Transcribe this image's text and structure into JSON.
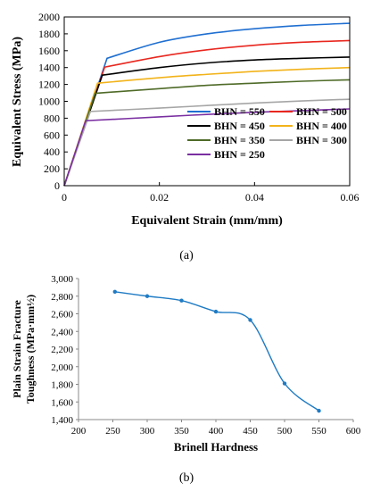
{
  "chart_data": [
    {
      "type": "line",
      "panel_label": "(a)",
      "xlabel": "Equivalent Strain (mm/mm)",
      "ylabel": "Equivalent Stress (MPa)",
      "xlim": [
        0,
        0.06
      ],
      "ylim": [
        0,
        2000
      ],
      "x_ticks": [
        0,
        0.02,
        0.04,
        0.06
      ],
      "x_tick_labels": [
        "0",
        "0.02",
        "0.04",
        "0.06"
      ],
      "y_ticks": [
        0,
        200,
        400,
        600,
        800,
        1000,
        1200,
        1400,
        1600,
        1800,
        2000
      ],
      "y_tick_labels": [
        "0",
        "200",
        "400",
        "600",
        "800",
        "1000",
        "1200",
        "1400",
        "1600",
        "1800",
        "2000"
      ],
      "grid": false,
      "legend_position": "bottom-right",
      "series": [
        {
          "name": "BHN = 550",
          "color": "#1f6fd1",
          "yield_strain": 0.009,
          "points": [
            [
              0,
              0
            ],
            [
              0.009,
              1510
            ],
            [
              0.02,
              1700
            ],
            [
              0.03,
              1800
            ],
            [
              0.04,
              1860
            ],
            [
              0.05,
              1900
            ],
            [
              0.06,
              1925
            ]
          ]
        },
        {
          "name": "BHN = 500",
          "color": "#e8271f",
          "yield_strain": 0.0085,
          "points": [
            [
              0,
              0
            ],
            [
              0.0085,
              1405
            ],
            [
              0.02,
              1530
            ],
            [
              0.03,
              1610
            ],
            [
              0.04,
              1665
            ],
            [
              0.05,
              1700
            ],
            [
              0.06,
              1720
            ]
          ]
        },
        {
          "name": "BHN = 450",
          "color": "#000000",
          "yield_strain": 0.008,
          "points": [
            [
              0,
              0
            ],
            [
              0.008,
              1310
            ],
            [
              0.02,
              1400
            ],
            [
              0.03,
              1455
            ],
            [
              0.04,
              1490
            ],
            [
              0.05,
              1510
            ],
            [
              0.06,
              1525
            ]
          ]
        },
        {
          "name": "BHN = 400",
          "color": "#f2b31a",
          "yield_strain": 0.007,
          "points": [
            [
              0,
              0
            ],
            [
              0.007,
              1215
            ],
            [
              0.02,
              1280
            ],
            [
              0.03,
              1320
            ],
            [
              0.04,
              1355
            ],
            [
              0.05,
              1380
            ],
            [
              0.06,
              1400
            ]
          ]
        },
        {
          "name": "BHN = 350",
          "color": "#4f6b28",
          "yield_strain": 0.0065,
          "points": [
            [
              0,
              0
            ],
            [
              0.0065,
              1095
            ],
            [
              0.02,
              1150
            ],
            [
              0.03,
              1190
            ],
            [
              0.04,
              1215
            ],
            [
              0.05,
              1238
            ],
            [
              0.06,
              1255
            ]
          ]
        },
        {
          "name": "BHN = 300",
          "color": "#a6a6a6",
          "yield_strain": 0.0055,
          "points": [
            [
              0,
              0
            ],
            [
              0.0055,
              880
            ],
            [
              0.02,
              920
            ],
            [
              0.03,
              950
            ],
            [
              0.04,
              980
            ],
            [
              0.05,
              1005
            ],
            [
              0.06,
              1025
            ]
          ]
        },
        {
          "name": "BHN = 250",
          "color": "#7a2fa1",
          "yield_strain": 0.0045,
          "points": [
            [
              0,
              0
            ],
            [
              0.0045,
              770
            ],
            [
              0.02,
              815
            ],
            [
              0.03,
              845
            ],
            [
              0.04,
              870
            ],
            [
              0.05,
              890
            ],
            [
              0.06,
              910
            ]
          ]
        }
      ]
    },
    {
      "type": "line",
      "panel_label": "(b)",
      "xlabel": "Brinell Hardness",
      "ylabel_line1": "Plain Strain Fracture",
      "ylabel_line2": "Toughness (MPa·mm½)",
      "xlim": [
        200,
        600
      ],
      "ylim": [
        1400,
        3000
      ],
      "x_ticks": [
        200,
        250,
        300,
        350,
        400,
        450,
        500,
        550,
        600
      ],
      "x_tick_labels": [
        "200",
        "250",
        "300",
        "350",
        "400",
        "450",
        "500",
        "550",
        "600"
      ],
      "y_ticks": [
        1400,
        1600,
        1800,
        2000,
        2200,
        2400,
        2600,
        2800,
        3000
      ],
      "y_tick_labels": [
        "1,400",
        "1,600",
        "1,800",
        "2,000",
        "2,200",
        "2,400",
        "2,600",
        "2,800",
        "3,000"
      ],
      "grid": false,
      "series": [
        {
          "color": "#1f7bc4",
          "x": [
            253,
            300,
            350,
            400,
            450,
            500,
            550
          ],
          "values": [
            2850,
            2800,
            2750,
            2625,
            2530,
            1810,
            1500
          ]
        }
      ]
    }
  ]
}
